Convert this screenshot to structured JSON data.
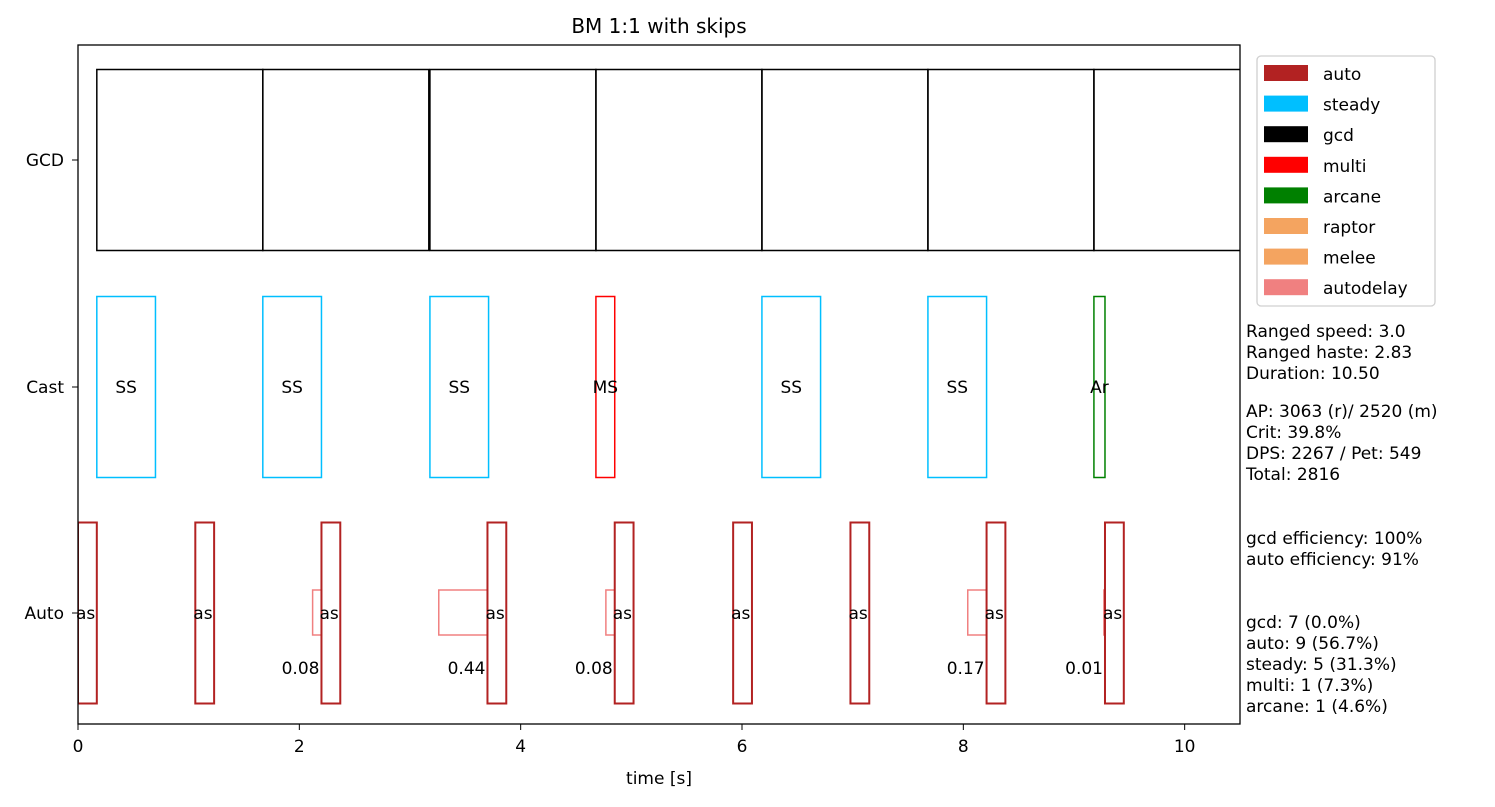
{
  "chart_data": {
    "type": "timeline",
    "title": "BM 1:1 with skips",
    "xlabel": "time [s]",
    "xlim": [
      0,
      10.5
    ],
    "xticks": [
      "0",
      "2",
      "4",
      "6",
      "8",
      "10"
    ],
    "rows": [
      "GCD",
      "Cast",
      "Auto"
    ],
    "colors": {
      "auto": "#b22222",
      "steady": "#00bfff",
      "gcd": "#000000",
      "multi": "#ff0000",
      "arcane": "#008000",
      "raptor": "#f4a460",
      "melee": "#f4a460",
      "autodelay": "#f08080"
    },
    "legend": [
      "auto",
      "steady",
      "gcd",
      "multi",
      "arcane",
      "raptor",
      "melee",
      "autodelay"
    ],
    "legend_position": "outside-top-right",
    "gcd": [
      [
        0.17,
        1.5
      ],
      [
        1.67,
        1.5
      ],
      [
        3.18,
        1.5
      ],
      [
        4.68,
        1.5
      ],
      [
        6.18,
        1.5
      ],
      [
        7.68,
        1.5
      ],
      [
        9.18,
        1.5
      ]
    ],
    "cast": [
      {
        "start": 0.17,
        "dur": 0.53,
        "label": "SS",
        "type": "steady"
      },
      {
        "start": 1.67,
        "dur": 0.53,
        "label": "SS",
        "type": "steady"
      },
      {
        "start": 3.18,
        "dur": 0.53,
        "label": "SS",
        "type": "steady"
      },
      {
        "start": 4.68,
        "dur": 0.17,
        "label": "MS",
        "type": "multi"
      },
      {
        "start": 6.18,
        "dur": 0.53,
        "label": "SS",
        "type": "steady"
      },
      {
        "start": 7.68,
        "dur": 0.53,
        "label": "SS",
        "type": "steady"
      },
      {
        "start": 9.18,
        "dur": 0.1,
        "label": "Ar",
        "type": "arcane"
      }
    ],
    "auto": [
      {
        "start": 0.0,
        "dur": 0.17,
        "label": "as"
      },
      {
        "start": 1.06,
        "dur": 0.17,
        "label": "as"
      },
      {
        "start": 2.2,
        "dur": 0.17,
        "label": "as"
      },
      {
        "start": 3.7,
        "dur": 0.17,
        "label": "as"
      },
      {
        "start": 4.85,
        "dur": 0.17,
        "label": "as"
      },
      {
        "start": 5.92,
        "dur": 0.17,
        "label": "as"
      },
      {
        "start": 6.98,
        "dur": 0.17,
        "label": "as"
      },
      {
        "start": 8.21,
        "dur": 0.17,
        "label": "as"
      },
      {
        "start": 9.28,
        "dur": 0.17,
        "label": "as"
      }
    ],
    "autodelay": [
      {
        "end": 2.2,
        "value": 0.08,
        "label": "0.08"
      },
      {
        "end": 3.7,
        "value": 0.44,
        "label": "0.44"
      },
      {
        "end": 4.85,
        "value": 0.08,
        "label": "0.08"
      },
      {
        "end": 8.21,
        "value": 0.17,
        "label": "0.17"
      },
      {
        "end": 9.28,
        "value": 0.01,
        "label": "0.01"
      }
    ]
  },
  "stats": {
    "block1": [
      "Ranged speed: 3.0",
      "Ranged haste: 2.83",
      "Duration: 10.50"
    ],
    "block2": [
      "AP: 3063 (r)/ 2520 (m)",
      "Crit: 39.8%",
      "DPS: 2267 / Pet: 549",
      "Total: 2816"
    ],
    "block3": [
      "gcd efficiency: 100%",
      "auto efficiency: 91%"
    ],
    "block4": [
      "gcd: 7 (0.0%)",
      "auto: 9 (56.7%)",
      "steady: 5 (31.3%)",
      "multi: 1 (7.3%)",
      "arcane: 1 (4.6%)"
    ]
  }
}
